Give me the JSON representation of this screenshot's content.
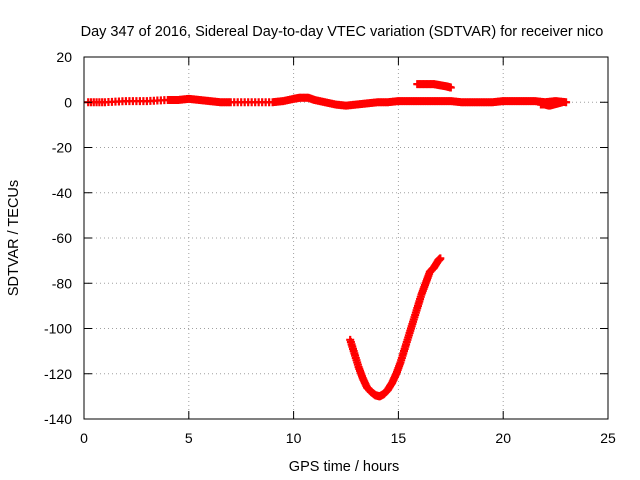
{
  "chart_data": {
    "type": "scatter",
    "title": "Day 347 of 2016, Sidereal Day-to-day VTEC variation (SDTVAR) for receiver nico",
    "xlabel": "GPS time / hours",
    "ylabel": "SDTVAR / TECUs",
    "xlim": [
      0,
      25
    ],
    "ylim": [
      -140,
      20
    ],
    "xticks": [
      0,
      5,
      10,
      15,
      20,
      25
    ],
    "yticks": [
      20,
      0,
      -20,
      -40,
      -60,
      -80,
      -100,
      -120,
      -140
    ],
    "grid": true,
    "marker": "+",
    "series_color": "#ff0000",
    "series": [
      {
        "x": [
          0.2,
          1.0,
          2.0,
          3.0,
          4.0,
          4.5,
          5.0,
          5.5,
          6.0,
          6.5,
          7.0,
          8.0,
          9.0,
          9.5,
          10.0,
          10.3,
          10.7,
          11.0,
          11.5,
          12.0,
          12.5,
          13.0,
          13.5,
          14.0,
          14.5,
          15.0,
          15.5,
          16.0,
          16.5,
          17.0,
          17.5,
          18.0,
          18.5,
          19.0,
          19.5,
          20.0,
          20.5,
          21.0,
          21.5,
          22.0,
          22.5,
          23.0
        ],
        "y": [
          0,
          0,
          0.5,
          0.5,
          1,
          1,
          1.5,
          1,
          0.5,
          0,
          0,
          0,
          0,
          0.5,
          1.5,
          2,
          2,
          1,
          0,
          -1,
          -1.5,
          -1,
          -0.5,
          0,
          0,
          0.5,
          0.5,
          0.5,
          0.5,
          0.5,
          0.5,
          0,
          0,
          0,
          0,
          0.5,
          0.5,
          0.5,
          0.5,
          0,
          0.5,
          0
        ]
      },
      {
        "x": [
          15.9,
          16.3,
          16.7,
          17.0,
          17.3,
          17.5
        ],
        "y": [
          8,
          8,
          8,
          7.5,
          7,
          6.5
        ]
      },
      {
        "x": [
          21.8,
          22.0,
          22.2,
          22.4,
          22.6,
          22.8
        ],
        "y": [
          -1,
          -1,
          -1.5,
          -1,
          -0.5,
          0
        ]
      },
      {
        "x": [
          12.7,
          12.9,
          13.1,
          13.3,
          13.5,
          13.7,
          13.9,
          14.1,
          14.3,
          14.5,
          14.7,
          14.9,
          15.1,
          15.3,
          15.5,
          15.7,
          15.9,
          16.1,
          16.3,
          16.5,
          16.7,
          16.9,
          17.0
        ],
        "y": [
          -105,
          -111,
          -117,
          -122,
          -126,
          -128,
          -129.5,
          -130,
          -129,
          -127,
          -124,
          -120,
          -115,
          -109,
          -103,
          -97,
          -91,
          -85,
          -80,
          -75,
          -73,
          -70,
          -69
        ]
      }
    ]
  }
}
